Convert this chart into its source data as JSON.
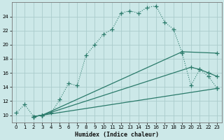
{
  "xlabel": "Humidex (Indice chaleur)",
  "xlim": [
    -0.5,
    23.5
  ],
  "ylim": [
    9.0,
    26.0
  ],
  "xticks": [
    0,
    1,
    2,
    3,
    4,
    5,
    6,
    7,
    8,
    9,
    10,
    11,
    12,
    13,
    14,
    15,
    16,
    17,
    18,
    19,
    20,
    21,
    22,
    23
  ],
  "yticks": [
    10,
    12,
    14,
    16,
    18,
    20,
    22,
    24
  ],
  "bg_color": "#cce8e8",
  "grid_color": "#aacccc",
  "line_color": "#2a7a6a",
  "main_x": [
    0,
    1,
    2,
    3,
    4,
    5,
    6,
    7,
    8,
    9,
    10,
    11,
    12,
    13,
    14,
    15,
    16,
    17,
    18,
    19,
    20,
    21,
    22,
    23
  ],
  "main_y": [
    10.3,
    11.5,
    9.8,
    10.0,
    10.3,
    12.2,
    14.5,
    14.2,
    18.5,
    20.0,
    21.5,
    22.2,
    24.5,
    24.8,
    24.5,
    25.3,
    25.5,
    23.2,
    22.2,
    18.8,
    14.2,
    16.5,
    15.5,
    13.8
  ],
  "line2_x": [
    2,
    3,
    23
  ],
  "line2_y": [
    9.8,
    10.0,
    13.8
  ],
  "line3_x": [
    2,
    3,
    20,
    21,
    22,
    23
  ],
  "line3_y": [
    9.8,
    10.0,
    16.8,
    16.5,
    16.0,
    15.5
  ],
  "line4_x": [
    2,
    3,
    19,
    23
  ],
  "line4_y": [
    9.8,
    10.0,
    19.0,
    18.8
  ]
}
